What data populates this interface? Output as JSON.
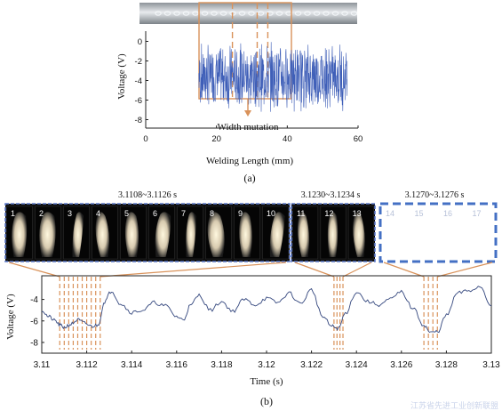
{
  "colors": {
    "signal": "#3f5fb8",
    "trace_b": "#34477e",
    "highlight": "#d9925a",
    "frame_border": "#5b78c8",
    "empty_border": "#4470c4"
  },
  "panel_a": {
    "caption": "(a)",
    "annotation": "Width mutation",
    "chart_data": {
      "type": "line",
      "xlabel": "Welding Length (mm)",
      "ylabel": "Voltage (V)",
      "xlim": [
        0,
        60
      ],
      "ylim": [
        -8.5,
        0.5
      ],
      "x_ticks": [
        "0",
        "20",
        "40",
        "60"
      ],
      "y_ticks": [
        "0",
        "-2",
        "-4",
        "-6",
        "-8"
      ],
      "signal_range": [
        15,
        57
      ],
      "signal_center": -3.6,
      "highlight_region": [
        18,
        41
      ],
      "dashed_markers": [
        24.5,
        31.5,
        34.5
      ],
      "annotation_x": 30,
      "grid": false,
      "legend": "none"
    }
  },
  "panel_b": {
    "caption": "(b)",
    "frame_groups": [
      {
        "label": "3.1108~3.1126 s",
        "frames": [
          "1",
          "2",
          "3",
          "4",
          "5",
          "6",
          "7",
          "8",
          "9",
          "10"
        ],
        "time_range": [
          3.1108,
          3.1126
        ]
      },
      {
        "label": "3.1230~3.1234 s",
        "frames": [
          "11",
          "12",
          "13"
        ],
        "time_range": [
          3.123,
          3.1234
        ]
      },
      {
        "label": "3.1270~3.1276 s",
        "frames": [
          "14",
          "15",
          "16",
          "17"
        ],
        "time_range": [
          3.127,
          3.1276
        ]
      }
    ],
    "chart_data": {
      "type": "line",
      "xlabel": "Time (s)",
      "ylabel": "Voltage (V)",
      "xlim": [
        3.11,
        3.13
      ],
      "ylim": [
        -9,
        -1.8
      ],
      "x_ticks": [
        "3.11",
        "3.112",
        "3.114",
        "3.116",
        "3.118",
        "3.12",
        "3.122",
        "3.124",
        "3.126",
        "3.128",
        "3.13"
      ],
      "y_ticks": [
        "-4",
        "-6",
        "-8"
      ],
      "grid": false,
      "legend": "none",
      "series": [
        {
          "x": [
            3.11,
            3.1103,
            3.1106,
            3.1108,
            3.111,
            3.1113,
            3.1116,
            3.1119,
            3.1122,
            3.1125,
            3.1128,
            3.1131,
            3.1135,
            3.114,
            3.1145,
            3.115,
            3.1155,
            3.116,
            3.1163,
            3.1166,
            3.117,
            3.1175,
            3.118,
            3.1185,
            3.119,
            3.1195,
            3.12,
            3.1205,
            3.121,
            3.1215,
            3.122,
            3.1225,
            3.1229,
            3.1232,
            3.1235,
            3.124,
            3.1245,
            3.125,
            3.1255,
            3.126,
            3.1265,
            3.127,
            3.1273,
            3.1276,
            3.128,
            3.1285,
            3.129,
            3.1295,
            3.13
          ],
          "y": [
            -5.0,
            -5.6,
            -6.0,
            -6.4,
            -6.6,
            -6.3,
            -5.9,
            -6.2,
            -6.5,
            -6.4,
            -4.2,
            -3.2,
            -4.4,
            -5.2,
            -5.0,
            -4.3,
            -4.6,
            -5.6,
            -5.9,
            -4.6,
            -3.6,
            -5.0,
            -4.2,
            -5.1,
            -4.0,
            -4.5,
            -3.9,
            -4.3,
            -3.4,
            -4.4,
            -3.1,
            -5.6,
            -6.5,
            -6.7,
            -5.3,
            -3.3,
            -4.2,
            -4.5,
            -4.0,
            -3.3,
            -4.8,
            -6.4,
            -7.1,
            -7.0,
            -5.5,
            -3.4,
            -3.2,
            -2.8,
            -4.6
          ]
        }
      ]
    }
  },
  "watermark": "江苏省先进工业创新联盟"
}
